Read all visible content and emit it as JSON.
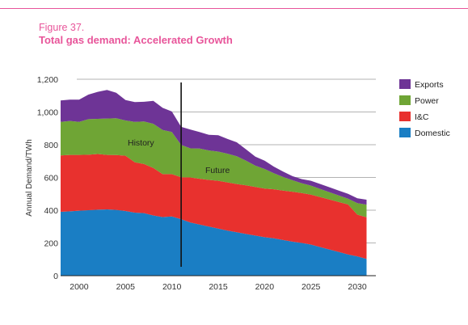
{
  "figure": {
    "number": "Figure 37.",
    "title": "Total gas demand: Accelerated Growth"
  },
  "colors": {
    "brand": "#e8559a",
    "grid": "#9a9a9a",
    "axis": "#222222"
  },
  "chart_data": {
    "type": "area",
    "stacked": true,
    "ylabel": "Annual Demand/TWh",
    "xlabel": "",
    "ylim": [
      0,
      1200
    ],
    "xlim": [
      1998,
      2032
    ],
    "yticks": [
      "0",
      "200",
      "400",
      "600",
      "800",
      "1,000",
      "1,200"
    ],
    "xticks": [
      "2000",
      "2005",
      "2010",
      "2015",
      "2020",
      "2025",
      "2030"
    ],
    "grid": true,
    "legend_position": "right",
    "annotations": [
      "History",
      "Future"
    ],
    "divider_year": 2011,
    "x": [
      1998,
      1999,
      2000,
      2001,
      2002,
      2003,
      2004,
      2005,
      2006,
      2007,
      2008,
      2009,
      2010,
      2011,
      2012,
      2013,
      2014,
      2015,
      2016,
      2017,
      2018,
      2019,
      2020,
      2021,
      2022,
      2023,
      2024,
      2025,
      2026,
      2027,
      2028,
      2029,
      2030,
      2031
    ],
    "series": [
      {
        "name": "Domestic",
        "color": "#1a7ec4",
        "values": [
          390,
          393,
          397,
          400,
          403,
          405,
          402,
          395,
          385,
          382,
          368,
          358,
          362,
          345,
          325,
          312,
          300,
          288,
          275,
          265,
          255,
          245,
          235,
          228,
          218,
          208,
          200,
          190,
          175,
          160,
          145,
          130,
          118,
          102
        ]
      },
      {
        "name": "I&C",
        "color": "#e8312e",
        "values": [
          345,
          345,
          341,
          339,
          340,
          333,
          335,
          338,
          308,
          300,
          290,
          262,
          258,
          256,
          275,
          280,
          285,
          292,
          295,
          295,
          297,
          297,
          297,
          300,
          302,
          305,
          305,
          305,
          305,
          305,
          305,
          305,
          255,
          255
        ]
      },
      {
        "name": "Power",
        "color": "#6fa535",
        "values": [
          205,
          207,
          202,
          217,
          215,
          222,
          225,
          215,
          247,
          260,
          270,
          270,
          258,
          198,
          178,
          185,
          180,
          178,
          175,
          170,
          150,
          130,
          120,
          98,
          83,
          70,
          60,
          55,
          50,
          45,
          40,
          35,
          70,
          77
        ]
      },
      {
        "name": "Exports",
        "color": "#6e3496",
        "values": [
          130,
          130,
          135,
          150,
          165,
          175,
          155,
          125,
          120,
          120,
          140,
          135,
          125,
          110,
          115,
          100,
          95,
          100,
          90,
          85,
          70,
          55,
          50,
          40,
          33,
          25,
          25,
          30,
          30,
          30,
          30,
          30,
          30,
          30
        ]
      }
    ]
  }
}
